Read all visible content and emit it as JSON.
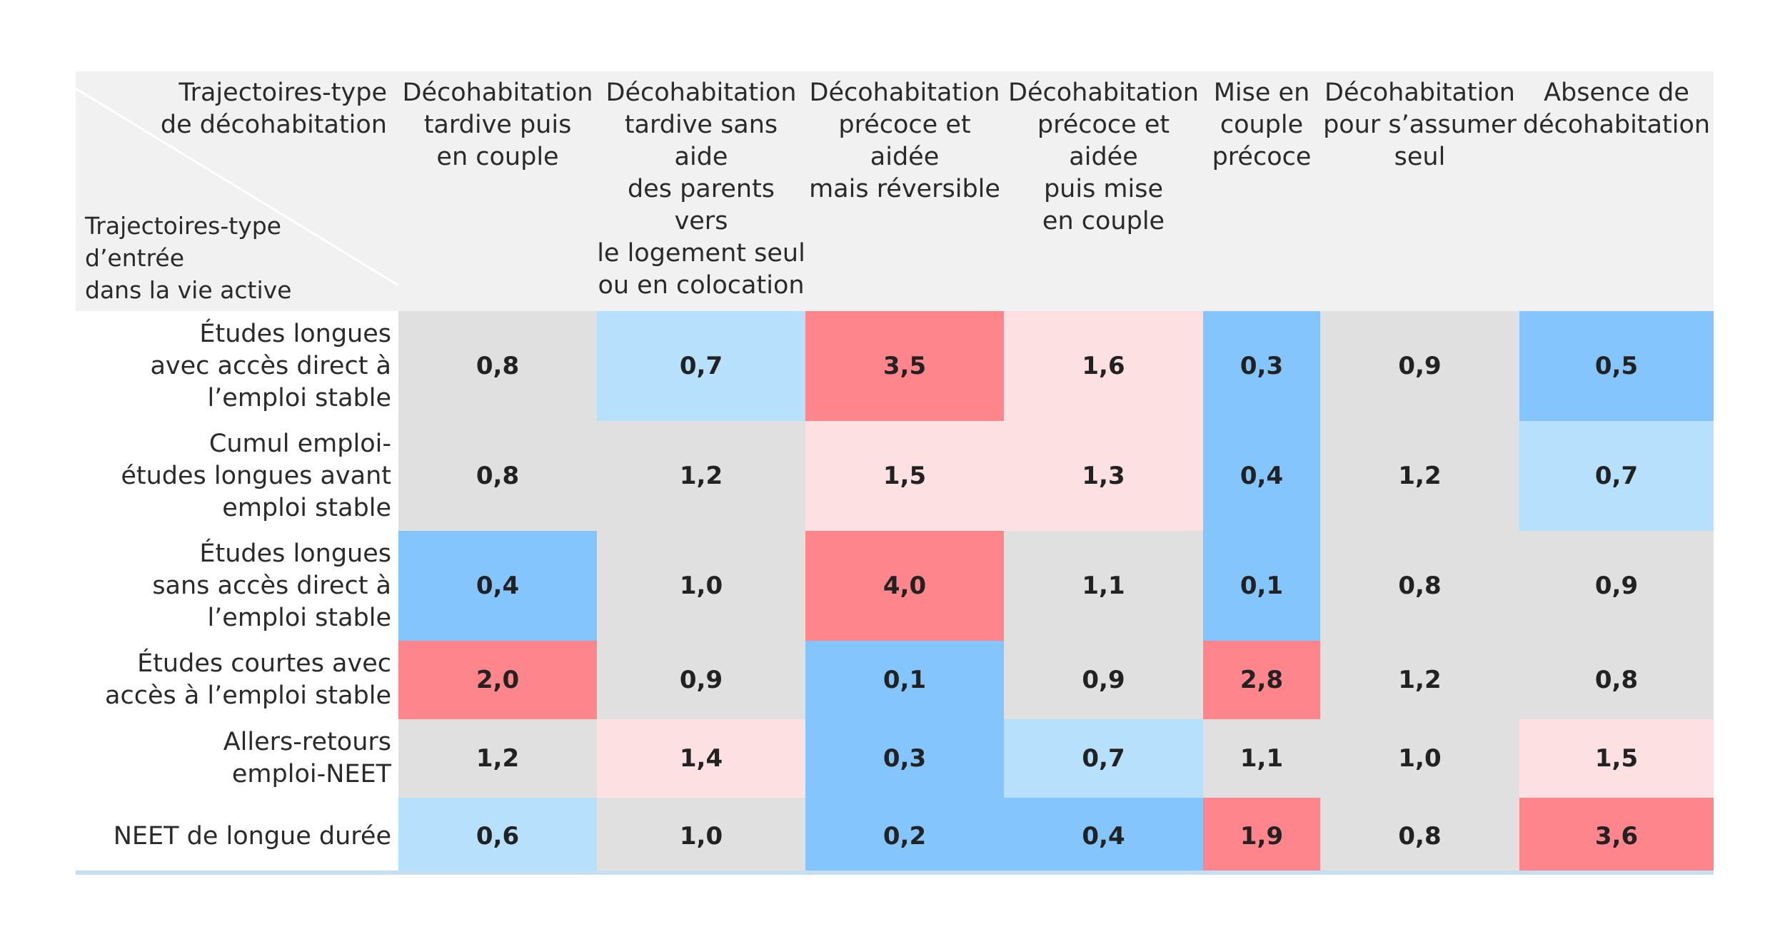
{
  "chart_data": {
    "type": "heatmap",
    "corner_column_header": "Trajectoires-type\nde décohabitation",
    "corner_row_header": "Trajectoires-type\nd’entrée\ndans la vie active",
    "columns": [
      "Décohabitation\ntardive puis\nen couple",
      "Décohabitation\ntardive sans aide\ndes parents vers\nle logement seul\nou en colocation",
      "Décohabitation\nprécoce et aidée\nmais réversible",
      "Décohabitation\nprécoce et aidée\npuis mise\nen couple",
      "Mise en\ncouple\nprécoce",
      "Décohabitation\npour s’assumer\nseul",
      "Absence de\ndécohabitation"
    ],
    "rows": [
      "Études longues\navec accès direct à\nl’emploi stable",
      "Cumul emploi-\nétudes longues avant\nemploi stable",
      "Études longues\nsans accès direct à\nl’emploi stable",
      "Études courtes avec\naccès à l’emploi stable",
      "Allers-retours\nemploi-NEET",
      "NEET de longue durée"
    ],
    "values": [
      [
        0.8,
        0.7,
        3.5,
        1.6,
        0.3,
        0.9,
        0.5
      ],
      [
        0.8,
        1.2,
        1.5,
        1.3,
        0.4,
        1.2,
        0.7
      ],
      [
        0.4,
        1.0,
        4.0,
        1.1,
        0.1,
        0.8,
        0.9
      ],
      [
        2.0,
        0.9,
        0.1,
        0.9,
        2.8,
        1.2,
        0.8
      ],
      [
        1.2,
        1.4,
        0.3,
        0.7,
        1.1,
        1.0,
        1.5
      ],
      [
        0.6,
        1.0,
        0.2,
        0.4,
        1.9,
        0.8,
        3.6
      ]
    ],
    "labels": [
      [
        "0,8",
        "0,7",
        "3,5",
        "1,6",
        "0,3",
        "0,9",
        "0,5"
      ],
      [
        "0,8",
        "1,2",
        "1,5",
        "1,3",
        "0,4",
        "1,2",
        "0,7"
      ],
      [
        "0,4",
        "1,0",
        "4,0",
        "1,1",
        "0,1",
        "0,8",
        "0,9"
      ],
      [
        "2,0",
        "0,9",
        "0,1",
        "0,9",
        "2,8",
        "1,2",
        "0,8"
      ],
      [
        "1,2",
        "1,4",
        "0,3",
        "0,7",
        "1,1",
        "1,0",
        "1,5"
      ],
      [
        "0,6",
        "1,0",
        "0,2",
        "0,4",
        "1,9",
        "0,8",
        "3,6"
      ]
    ],
    "color_scale": {
      "strong_blue": "#85c5fd",
      "light_blue": "#b7e0fc",
      "neutral": "#e0e0e0",
      "light_red": "#fde0e1",
      "strong_red": "#fe858b"
    },
    "header_background": "#f1f1f1"
  }
}
